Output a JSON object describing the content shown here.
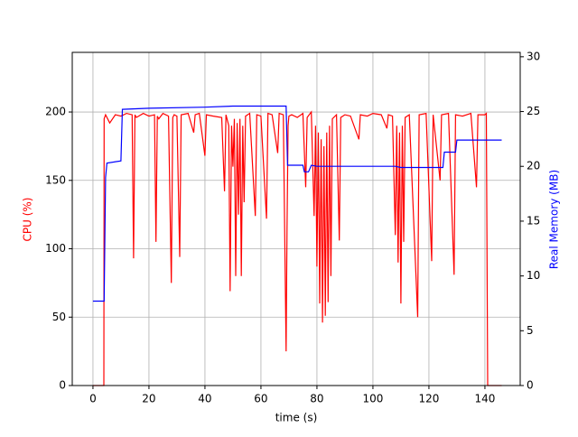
{
  "chart_data": {
    "type": "line",
    "xlabel": "time (s)",
    "ylabel": "CPU (%)",
    "y2label": "Real Memory (MB)",
    "ylabel_color": "#ff0000",
    "y2label_color": "#0000ff",
    "xlim": [
      -7.4,
      152.6
    ],
    "xticks": [
      0,
      20,
      40,
      60,
      80,
      100,
      120,
      140
    ],
    "ylim": [
      0,
      243.6
    ],
    "yticks": [
      0,
      50,
      100,
      150,
      200
    ],
    "y2lim": [
      0,
      30.4
    ],
    "y2ticks": [
      0,
      5,
      10,
      15,
      20,
      25,
      30
    ],
    "grid": true,
    "series": [
      {
        "color": "#ff0000",
        "axis": "y",
        "x": [
          0,
          3.9,
          4,
          4.5,
          6,
          8,
          10,
          12,
          14,
          14.5,
          15,
          15.5,
          18,
          20,
          22,
          22.5,
          23,
          23.5,
          25,
          27,
          28,
          28.5,
          29,
          30,
          31,
          31.5,
          34,
          36,
          36.5,
          38,
          40,
          40.5,
          43,
          46,
          47,
          47.5,
          48.5,
          49,
          49.5,
          50,
          50.5,
          51,
          51.5,
          52,
          52.5,
          53,
          53.5,
          54,
          54.5,
          56,
          58,
          58.5,
          60,
          62,
          62.5,
          64,
          66,
          66.5,
          68,
          69,
          69.3,
          69.7,
          70,
          71,
          73,
          75,
          76,
          76.5,
          78,
          79,
          79.5,
          80,
          80.5,
          81,
          81.5,
          82,
          82.5,
          83,
          83.5,
          84,
          84.5,
          85,
          85.5,
          87,
          88,
          88.5,
          90,
          92,
          95,
          95.5,
          98,
          100,
          103,
          105,
          105.5,
          107,
          108,
          108.5,
          109,
          109.5,
          110,
          110.5,
          111,
          111.5,
          113,
          116,
          116.5,
          119,
          121,
          121.5,
          124,
          124.5,
          127,
          129,
          129.5,
          132,
          135,
          137,
          137.5,
          140,
          140.5,
          141,
          146
        ],
        "values": [
          0,
          0,
          195,
          198,
          192,
          198,
          197,
          199,
          198,
          93,
          198,
          196,
          199,
          197,
          198,
          105,
          197,
          195,
          199,
          197,
          75,
          196,
          198,
          197,
          94,
          198,
          199,
          185,
          198,
          199,
          168,
          198,
          197,
          196,
          142,
          198,
          190,
          69,
          190,
          160,
          195,
          80,
          192,
          125,
          195,
          80,
          190,
          134,
          197,
          199,
          124,
          198,
          197,
          122,
          199,
          198,
          170,
          199,
          198,
          25,
          114,
          190,
          197,
          198,
          196,
          199,
          145,
          196,
          200,
          124,
          190,
          87,
          185,
          60,
          180,
          46,
          175,
          51,
          185,
          61,
          190,
          80,
          195,
          198,
          106,
          196,
          198,
          197,
          180,
          198,
          197,
          199,
          198,
          188,
          198,
          197,
          110,
          190,
          90,
          185,
          60,
          190,
          105,
          196,
          198,
          50,
          198,
          199,
          91,
          198,
          150,
          198,
          199,
          81,
          198,
          197,
          199,
          145,
          198,
          198,
          199,
          0,
          0
        ]
      },
      {
        "color": "#0000ff",
        "axis": "y2",
        "x": [
          0,
          4,
          4.5,
          5,
          10,
          10.5,
          20,
          40,
          50,
          69,
          69.5,
          75,
          75.5,
          77,
          78,
          80,
          108,
          110,
          125,
          125.5,
          129.5,
          130,
          146
        ],
        "values": [
          7.7,
          7.7,
          19,
          20.3,
          20.5,
          25.2,
          25.3,
          25.4,
          25.5,
          25.5,
          20.1,
          20.1,
          19.5,
          19.5,
          20.1,
          20.0,
          20.0,
          19.9,
          19.9,
          21.3,
          21.3,
          22.4,
          22.4
        ]
      }
    ]
  }
}
